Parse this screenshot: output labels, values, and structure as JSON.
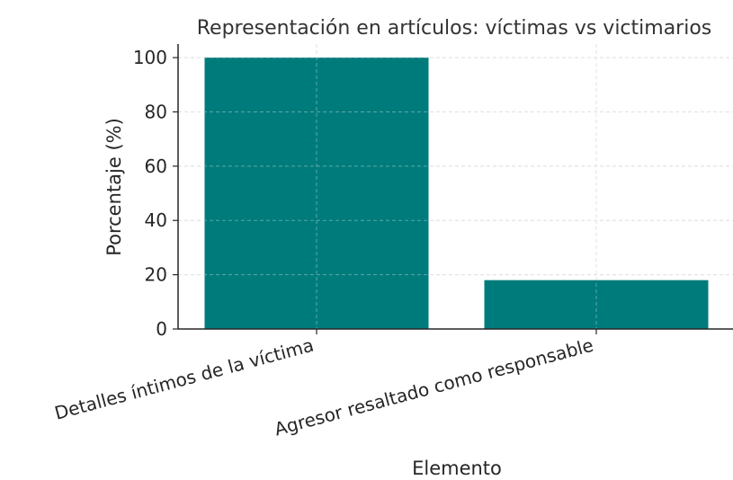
{
  "chart_data": {
    "type": "bar",
    "title": "Representación en artículos: víctimas vs victimarios",
    "xlabel": "Elemento",
    "ylabel": "Porcentaje (%)",
    "categories": [
      "Detalles íntimos de la víctima",
      "Agresor resaltado como responsable"
    ],
    "values": [
      100,
      18
    ],
    "ylim": [
      0,
      105
    ],
    "yticks": [
      "0",
      "20",
      "40",
      "60",
      "80",
      "100"
    ],
    "bar_color": "#007b7b",
    "grid": true
  }
}
